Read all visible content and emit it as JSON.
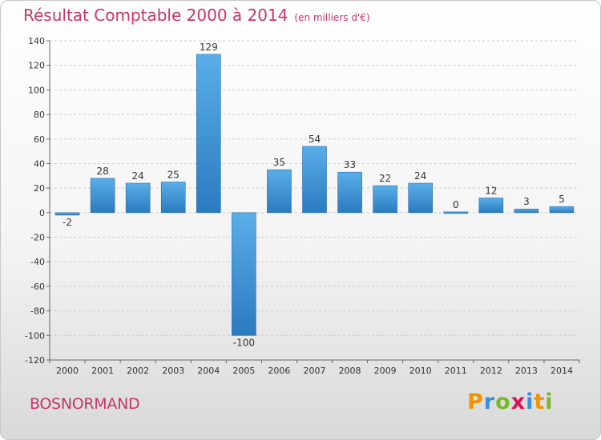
{
  "header": {
    "title": "Résultat Comptable 2000 à 2014",
    "unit": "(en milliers d'€)"
  },
  "commune": "BOSNORMAND",
  "brand": {
    "letters": [
      "P",
      "r",
      "o",
      "x",
      "i",
      "t",
      "i"
    ],
    "colors": [
      "#f29400",
      "#3b8fd9",
      "#78b928",
      "#d4145a",
      "#3b8fd9",
      "#f29400",
      "#78b928"
    ]
  },
  "colors": {
    "title": "#c9346a",
    "bar_light": "#5aaee8",
    "bar_dark": "#2a7bbf",
    "axis": "#666666",
    "grid": "#cccccc"
  },
  "chart_data": {
    "type": "bar",
    "title": "Résultat Comptable 2000 à 2014",
    "subtitle": "(en milliers d'€)",
    "xlabel": "",
    "ylabel": "",
    "categories": [
      "2000",
      "2001",
      "2002",
      "2003",
      "2004",
      "2005",
      "2006",
      "2007",
      "2008",
      "2009",
      "2010",
      "2011",
      "2012",
      "2013",
      "2014"
    ],
    "values": [
      -2,
      28,
      24,
      25,
      129,
      -100,
      35,
      54,
      33,
      22,
      24,
      0,
      12,
      3,
      5
    ],
    "ylim": [
      -120,
      140
    ],
    "yticks": [
      140,
      120,
      100,
      80,
      60,
      40,
      20,
      0,
      -20,
      -40,
      -60,
      -80,
      -100,
      -120
    ],
    "grid": true
  }
}
